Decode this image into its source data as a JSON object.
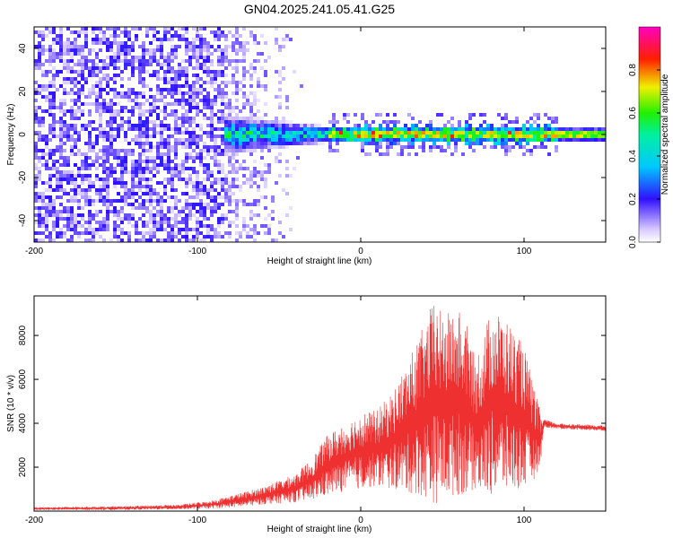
{
  "title": "GN04.2025.241.05.41.G25",
  "chart_data": [
    {
      "type": "heatmap",
      "xlabel": "Height of straight line (km)",
      "ylabel": "Frequency (Hz)",
      "xlim": [
        -200,
        150
      ],
      "ylim": [
        -50,
        50
      ],
      "xticks": [
        -200,
        -100,
        0,
        100
      ],
      "yticks": [
        -40,
        -20,
        0,
        20,
        40
      ],
      "colorbar": {
        "label": "Normalized spectral amplitude",
        "range": [
          0,
          1
        ],
        "ticks": [
          0.0,
          0.2,
          0.4,
          0.6,
          0.8
        ],
        "tick_labels": [
          "0.0",
          "0.2",
          "0.4",
          "0.6",
          "0.8"
        ]
      },
      "regions": [
        {
          "name": "noise",
          "x_range": [
            -200,
            -85
          ],
          "freq_range": [
            -50,
            50
          ],
          "amplitude": 0.2
        },
        {
          "name": "noise-fade",
          "x_range": [
            -85,
            -35
          ],
          "freq_range": [
            -50,
            50
          ],
          "amplitude": 0.1
        },
        {
          "name": "signal-onset",
          "x_range": [
            -85,
            -20
          ],
          "center_hz": 0,
          "half_width_hz": 10,
          "amplitude": 0.3
        },
        {
          "name": "signal",
          "x_range": [
            -20,
            120
          ],
          "center_hz": 0,
          "half_width_hz": 4,
          "amplitude": 0.85
        },
        {
          "name": "signal-tail",
          "x_range": [
            120,
            150
          ],
          "center_hz": 0,
          "half_width_hz": 1,
          "amplitude": 0.6
        }
      ]
    },
    {
      "type": "line",
      "xlabel": "Height of straight line (km)",
      "ylabel": "SNR (10 * v/v)",
      "xlim": [
        -200,
        150
      ],
      "ylim": [
        0,
        9800
      ],
      "xticks": [
        -200,
        -100,
        0,
        100
      ],
      "yticks": [
        2000,
        4000,
        6000,
        8000
      ],
      "color": "#ee3030",
      "envelope": {
        "x": [
          -200,
          -150,
          -110,
          -90,
          -70,
          -60,
          -50,
          -40,
          -30,
          -20,
          -10,
          0,
          10,
          20,
          30,
          40,
          45,
          50,
          60,
          65,
          70,
          75,
          80,
          85,
          90,
          100,
          105,
          110,
          112,
          120,
          150
        ],
        "low": [
          50,
          50,
          80,
          120,
          200,
          300,
          350,
          400,
          500,
          700,
          900,
          1000,
          1100,
          1000,
          800,
          600,
          300,
          500,
          700,
          800,
          1000,
          700,
          700,
          900,
          800,
          1000,
          1300,
          2000,
          3800,
          3750,
          3650
        ],
        "high": [
          180,
          220,
          300,
          500,
          900,
          1100,
          1400,
          1700,
          2400,
          3500,
          4000,
          4500,
          4600,
          5500,
          7000,
          8700,
          9700,
          9000,
          9200,
          8500,
          7000,
          8000,
          9300,
          9000,
          8700,
          7500,
          6000,
          4500,
          4200,
          4000,
          3900
        ]
      }
    }
  ]
}
